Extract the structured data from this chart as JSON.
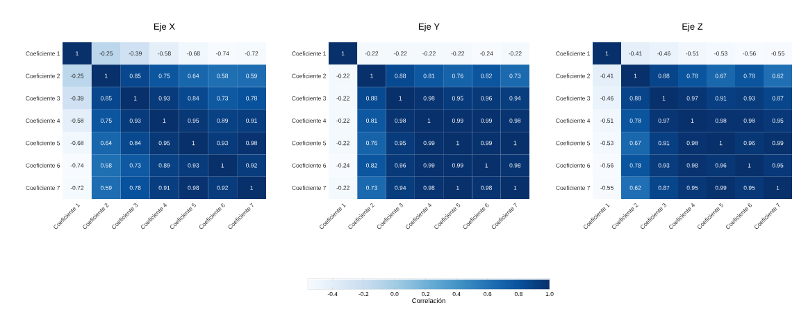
{
  "chart_data": [
    {
      "type": "heatmap",
      "title": "Eje X",
      "data_labels": true,
      "categories": [
        "Coeficiente 1",
        "Coeficiente 2",
        "Coeficiente 3",
        "Coeficiente 4",
        "Coeficiente 5",
        "Coeficiente 6",
        "Coeficiente 7"
      ],
      "y_categories": [
        "Coeficiente 1",
        "Coeficiente 2",
        "Coeficiente 3",
        "Coeficiente 4",
        "Coeficiente 5",
        "Coeficiente 6",
        "Coeficiente 7"
      ],
      "cells": [
        [
          1,
          -0.25,
          -0.39,
          -0.58,
          -0.68,
          -0.74,
          -0.72
        ],
        [
          -0.25,
          1,
          0.85,
          0.75,
          0.64,
          0.58,
          0.59
        ],
        [
          -0.39,
          0.85,
          1,
          0.93,
          0.84,
          0.73,
          0.78
        ],
        [
          -0.58,
          0.75,
          0.93,
          1,
          0.95,
          0.89,
          0.91
        ],
        [
          -0.68,
          0.64,
          0.84,
          0.95,
          1,
          0.93,
          0.98
        ],
        [
          -0.74,
          0.58,
          0.73,
          0.89,
          0.93,
          1,
          0.92
        ],
        [
          -0.72,
          0.59,
          0.78,
          0.91,
          0.98,
          0.92,
          1
        ]
      ]
    },
    {
      "type": "heatmap",
      "title": "Eje Y",
      "data_labels": true,
      "categories": [
        "Coeficiente 1",
        "Coeficiente 2",
        "Coeficiente 3",
        "Coeficiente 4",
        "Coeficiente 5",
        "Coeficiente 6",
        "Coeficiente 7"
      ],
      "y_categories": [
        "Coeficiente 1",
        "Coeficiente 2",
        "Coeficiente 3",
        "Coeficiente 4",
        "Coeficiente 5",
        "Coeficiente 6",
        "Coeficiente 7"
      ],
      "cells": [
        [
          1,
          -0.22,
          -0.22,
          -0.22,
          -0.22,
          -0.24,
          -0.22
        ],
        [
          -0.22,
          1,
          0.88,
          0.81,
          0.76,
          0.82,
          0.73
        ],
        [
          -0.22,
          0.88,
          1,
          0.98,
          0.95,
          0.96,
          0.94
        ],
        [
          -0.22,
          0.81,
          0.98,
          1,
          0.99,
          0.99,
          0.98
        ],
        [
          -0.22,
          0.76,
          0.95,
          0.99,
          1,
          0.99,
          1
        ],
        [
          -0.24,
          0.82,
          0.96,
          0.99,
          0.99,
          1,
          0.98
        ],
        [
          -0.22,
          0.73,
          0.94,
          0.98,
          1,
          0.98,
          1
        ]
      ]
    },
    {
      "type": "heatmap",
      "title": "Eje Z",
      "data_labels": true,
      "clabel": "Correlación",
      "clim": [
        -0.56,
        1.0
      ],
      "cticks": [
        -0.4,
        -0.2,
        {
          "value": 0,
          "label": "0.0"
        },
        0.2,
        0.4,
        0.6,
        0.8,
        {
          "value": 1,
          "label": "1.0"
        }
      ],
      "categories": [
        "Coeficiente 1",
        "Coeficiente 2",
        "Coeficiente 3",
        "Coeficiente 4",
        "Coeficiente 5",
        "Coeficiente 6",
        "Coeficiente 7"
      ],
      "y_categories": [
        "Coeficiente 1",
        "Coeficiente 2",
        "Coeficiente 3",
        "Coeficiente 4",
        "Coeficiente 5",
        "Coeficiente 6",
        "Coeficiente 7"
      ],
      "cells": [
        [
          1,
          -0.41,
          -0.46,
          -0.51,
          -0.53,
          -0.56,
          -0.55
        ],
        [
          -0.41,
          1,
          0.88,
          0.78,
          0.67,
          0.78,
          0.62
        ],
        [
          -0.46,
          0.88,
          1,
          0.97,
          0.91,
          0.93,
          0.87
        ],
        [
          -0.51,
          0.78,
          0.97,
          1,
          0.98,
          0.98,
          0.95
        ],
        [
          -0.53,
          0.67,
          0.91,
          0.98,
          1,
          0.96,
          0.99
        ],
        [
          -0.56,
          0.78,
          0.93,
          0.98,
          0.96,
          1,
          0.95
        ],
        [
          -0.55,
          0.62,
          0.87,
          0.95,
          0.99,
          0.95,
          1
        ]
      ]
    }
  ]
}
